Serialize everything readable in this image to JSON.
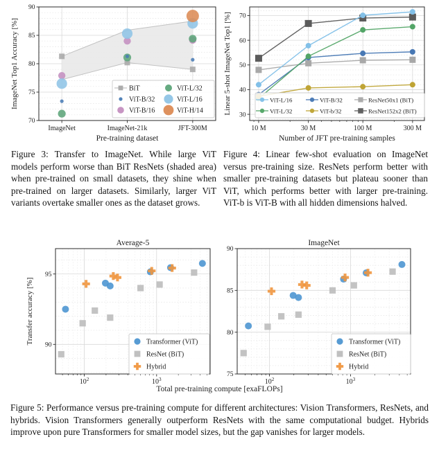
{
  "page": {
    "background": "#ffffff"
  },
  "figure3": {
    "caption": "Figure 3: Transfer to ImageNet. While large ViT models perform worse than BiT ResNets (shaded area) when pre-trained on small datasets, they shine when pre-trained on larger datasets. Similarly, larger ViT variants overtake smaller ones as the dataset grows."
  },
  "figure4": {
    "caption": "Figure 4: Linear few-shot evaluation on ImageNet versus pre-training size. ResNets perform better with smaller pre-training datasets but plateau sooner than ViT, which performs better with larger pre-training. ViT-b is ViT-B with all hidden dimensions halved."
  },
  "figure5": {
    "xlabel": "Total pre-training compute [exaFLOPs]",
    "caption": "Figure 5: Performance versus pre-training compute for different architectures: Vision Transformers, ResNets, and hybrids. Vision Transformers generally outperform ResNets with the same computational budget. Hybrids improve upon pure Transformers for smaller model sizes, but the gap vanishes for larger models."
  },
  "chart_data": [
    {
      "id": "fig3",
      "type": "scatter",
      "title": "",
      "xlabel": "Pre-training dataset",
      "ylabel": "ImageNet Top1 Accuracy [%]",
      "categories": [
        "ImageNet",
        "ImageNet-21k",
        "JFT-300M"
      ],
      "ylim": [
        70,
        90
      ],
      "yticks": [
        70,
        75,
        80,
        85,
        90
      ],
      "yminor": 1,
      "grid": true,
      "band": {
        "name": "BiT range (shaded area)",
        "fill": "#e9e9e9",
        "edge": "#c2c2c2",
        "top": [
          81.3,
          85.9,
          87.5
        ],
        "bottom": [
          77.2,
          80.2,
          79.0
        ]
      },
      "legend": {
        "position": "lower right",
        "columns": 2
      },
      "series": [
        {
          "name": "BiT",
          "marker": "square",
          "color": "#a9a9a9",
          "size": 4,
          "legend_size": 3.4,
          "legend_line": true,
          "values": [
            [
              0,
              81.3
            ],
            [
              1,
              80.2
            ],
            [
              2,
              79.0
            ]
          ]
        },
        {
          "name": "ViT-B/32",
          "marker": "circle",
          "color": "#4a7cb5",
          "size": 2.6,
          "legend_size": 2.6,
          "values": [
            [
              0,
              73.4
            ],
            [
              1,
              81.3
            ],
            [
              2,
              80.7
            ]
          ]
        },
        {
          "name": "ViT-B/16",
          "marker": "circle",
          "color": "#c48fc0",
          "size": 5.2,
          "legend_size": 4.8,
          "values": [
            [
              0,
              77.9
            ],
            [
              1,
              84.0
            ],
            [
              2,
              84.15
            ]
          ]
        },
        {
          "name": "ViT-L/32",
          "marker": "circle",
          "color": "#5da57a",
          "size": 5.6,
          "legend_size": 5.0,
          "values": [
            [
              0,
              71.2
            ],
            [
              1,
              81.1
            ],
            [
              2,
              84.4
            ]
          ]
        },
        {
          "name": "ViT-L/16",
          "marker": "circle",
          "color": "#8fc4e6",
          "size": 7.6,
          "legend_size": 6.6,
          "values": [
            [
              0,
              76.5
            ],
            [
              1,
              85.3
            ],
            [
              2,
              87.1
            ]
          ]
        },
        {
          "name": "ViT-H/14",
          "marker": "circle",
          "color": "#dc8b55",
          "size": 9,
          "legend_size": 7.4,
          "values": [
            [
              2,
              88.4
            ]
          ]
        }
      ]
    },
    {
      "id": "fig4",
      "type": "line",
      "title": "",
      "xlabel": "Number of JFT pre-training samples",
      "ylabel": "Linear 5-shot ImageNet Top1 [%]",
      "xscale": "log",
      "x": [
        10,
        30,
        100,
        300
      ],
      "xticks": [
        10,
        30,
        100,
        300
      ],
      "xticklabels": [
        "10 M",
        "30 M",
        "100 M",
        "300 M"
      ],
      "xlim": [
        8.2,
        390
      ],
      "ylim": [
        27.5,
        73.5
      ],
      "yticks": [
        30,
        40,
        50,
        60,
        70
      ],
      "yminor": 2,
      "grid": true,
      "legend": {
        "position": "lower center",
        "columns": 3
      },
      "series": [
        {
          "name": "ViT-L/16",
          "marker": "circle",
          "color": "#82c0e8",
          "size": 4,
          "legend_size": 3.2,
          "line": true,
          "values": [
            42.0,
            57.8,
            70.1,
            71.5
          ]
        },
        {
          "name": "ViT-L/32",
          "marker": "circle",
          "color": "#53a567",
          "size": 4,
          "legend_size": 3.2,
          "line": true,
          "values": [
            36.4,
            53.5,
            64.2,
            65.5
          ]
        },
        {
          "name": "ViT-B/32",
          "marker": "circle",
          "color": "#4878b4",
          "size": 4,
          "legend_size": 3.2,
          "line": true,
          "values": [
            38.0,
            53.0,
            54.7,
            55.3
          ]
        },
        {
          "name": "ViT-b/32",
          "marker": "circle",
          "color": "#bfa435",
          "size": 4,
          "legend_size": 3.2,
          "line": true,
          "values": [
            37.3,
            40.7,
            41.2,
            42.0
          ]
        },
        {
          "name": "ResNet50x1 (BiT)",
          "marker": "square",
          "color": "#a8a8a8",
          "size": 4.5,
          "legend_size": 3.6,
          "line": true,
          "values": [
            48.0,
            50.7,
            51.9,
            52.1
          ]
        },
        {
          "name": "ResNet152x2 (BiT)",
          "marker": "square",
          "color": "#5b5b5b",
          "size": 5,
          "legend_size": 3.8,
          "line": true,
          "values": [
            52.7,
            66.8,
            69.0,
            69.4
          ]
        }
      ]
    },
    {
      "id": "fig5a",
      "type": "scatter",
      "title": "Average-5",
      "xlabel": "Total pre-training compute [exaFLOPs]",
      "ylabel": "Transfer accuracy [%]",
      "xscale": "log",
      "xticks": [
        100,
        1000
      ],
      "xticklabels": [
        "10^2",
        "10^3"
      ],
      "xlim": [
        40,
        5500
      ],
      "ylim": [
        87.9,
        96.8
      ],
      "yticks": [
        90,
        95
      ],
      "yminor": 1,
      "grid": true,
      "legend": {
        "position": "lower right",
        "columns": 1
      },
      "series": [
        {
          "name": "Transformer (ViT)",
          "marker": "circle",
          "color": "#4e96d1",
          "size": 5,
          "legend_size": 4.6,
          "values": [
            [
              55,
              92.5
            ],
            [
              196,
              94.35
            ],
            [
              228,
              94.15
            ],
            [
              820,
              95.15
            ],
            [
              1560,
              95.45
            ],
            [
              4300,
              95.75
            ]
          ]
        },
        {
          "name": "ResNet (BiT)",
          "marker": "square",
          "color": "#bdbdbd",
          "size": 4.6,
          "legend_size": 4.4,
          "values": [
            [
              48,
              89.3
            ],
            [
              95,
              91.5
            ],
            [
              140,
              92.4
            ],
            [
              228,
              91.9
            ],
            [
              600,
              94.0
            ],
            [
              1100,
              94.25
            ],
            [
              3300,
              95.1
            ]
          ]
        },
        {
          "name": "Hybrid",
          "marker": "plus",
          "color": "#f0963f",
          "size": 5.6,
          "legend_size": 5.2,
          "values": [
            [
              106,
              94.3
            ],
            [
              252,
              94.85
            ],
            [
              288,
              94.75
            ],
            [
              856,
              95.22
            ],
            [
              1640,
              95.42
            ]
          ]
        }
      ]
    },
    {
      "id": "fig5b",
      "type": "scatter",
      "title": "ImageNet",
      "xlabel": "Total pre-training compute [exaFLOPs]",
      "ylabel": "",
      "xscale": "log",
      "xticks": [
        100,
        1000
      ],
      "xticklabels": [
        "10^2",
        "10^3"
      ],
      "xlim": [
        40,
        5500
      ],
      "ylim": [
        75,
        90
      ],
      "yticks": [
        75,
        80,
        85,
        90
      ],
      "yminor": 1,
      "grid": true,
      "legend": {
        "position": "lower right",
        "columns": 1
      },
      "series": [
        {
          "name": "Transformer (ViT)",
          "marker": "circle",
          "color": "#4e96d1",
          "size": 5,
          "legend_size": 4.6,
          "values": [
            [
              55,
              80.75
            ],
            [
              196,
              84.4
            ],
            [
              228,
              84.15
            ],
            [
              820,
              86.35
            ],
            [
              1560,
              87.1
            ],
            [
              4300,
              88.1
            ]
          ]
        },
        {
          "name": "ResNet (BiT)",
          "marker": "square",
          "color": "#bdbdbd",
          "size": 4.6,
          "legend_size": 4.4,
          "values": [
            [
              48,
              77.5
            ],
            [
              95,
              80.65
            ],
            [
              140,
              81.9
            ],
            [
              228,
              82.1
            ],
            [
              600,
              85.0
            ],
            [
              1100,
              85.6
            ],
            [
              3300,
              87.25
            ]
          ]
        },
        {
          "name": "Hybrid",
          "marker": "plus",
          "color": "#f0963f",
          "size": 5.6,
          "legend_size": 5.2,
          "values": [
            [
              106,
              84.9
            ],
            [
              252,
              85.7
            ],
            [
              288,
              85.6
            ],
            [
              856,
              86.55
            ],
            [
              1640,
              87.12
            ]
          ]
        }
      ]
    }
  ]
}
